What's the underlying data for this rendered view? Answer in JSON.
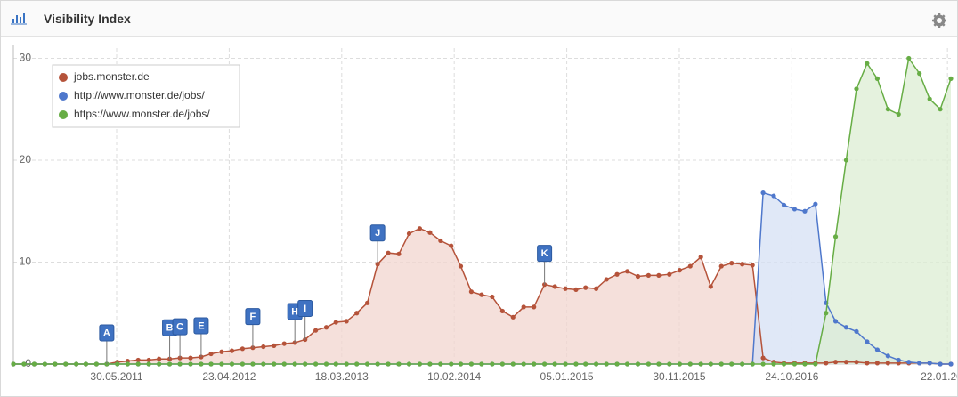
{
  "header": {
    "title": "Visibility Index"
  },
  "chart_data": {
    "type": "line",
    "x": [
      "2010-08",
      "2010-09",
      "2010-10",
      "2010-11",
      "2010-12",
      "2011-01",
      "2011-02",
      "2011-03",
      "2011-04",
      "2011-05",
      "2011-06",
      "2011-07",
      "2011-08",
      "2011-09",
      "2011-10",
      "2011-11",
      "2011-12",
      "2012-01",
      "2012-02",
      "2012-03",
      "2012-04",
      "2012-05",
      "2012-06",
      "2012-07",
      "2012-08",
      "2012-09",
      "2012-10",
      "2012-11",
      "2012-12",
      "2013-01",
      "2013-02",
      "2013-03",
      "2013-04",
      "2013-05",
      "2013-06",
      "2013-07",
      "2013-08",
      "2013-09",
      "2013-10",
      "2013-11",
      "2013-12",
      "2014-01",
      "2014-02",
      "2014-03",
      "2014-04",
      "2014-05",
      "2014-06",
      "2014-07",
      "2014-08",
      "2014-09",
      "2014-10",
      "2014-11",
      "2014-12",
      "2015-01",
      "2015-02",
      "2015-03",
      "2015-04",
      "2015-05",
      "2015-06",
      "2015-07",
      "2015-08",
      "2015-09",
      "2015-10",
      "2015-11",
      "2015-12",
      "2016-01",
      "2016-02",
      "2016-03",
      "2016-04",
      "2016-05",
      "2016-06",
      "2016-07",
      "2016-08",
      "2016-09",
      "2016-10",
      "2016-11",
      "2016-12",
      "2017-01",
      "2017-02",
      "2017-03",
      "2017-04",
      "2017-05",
      "2017-06",
      "2017-07",
      "2017-08",
      "2017-09",
      "2017-10",
      "2017-11",
      "2017-12",
      "2018-01",
      "2018-02"
    ],
    "series": [
      {
        "name": "jobs.monster.de",
        "color": "#b5533a",
        "fill": "#f2d6cf",
        "values": [
          0,
          0,
          0,
          0,
          0,
          0,
          0,
          0,
          0,
          0,
          0.2,
          0.3,
          0.4,
          0.4,
          0.5,
          0.5,
          0.6,
          0.6,
          0.7,
          1.0,
          1.2,
          1.3,
          1.5,
          1.6,
          1.7,
          1.8,
          2.0,
          2.1,
          2.4,
          3.3,
          3.6,
          4.1,
          4.2,
          5.0,
          6.0,
          9.8,
          10.9,
          10.8,
          12.8,
          13.3,
          12.9,
          12.1,
          11.6,
          9.6,
          7.1,
          6.8,
          6.6,
          5.2,
          4.6,
          5.6,
          5.6,
          7.8,
          7.6,
          7.4,
          7.3,
          7.5,
          7.4,
          8.3,
          8.8,
          9.1,
          8.6,
          8.7,
          8.7,
          8.8,
          9.2,
          9.6,
          10.5,
          7.6,
          9.6,
          9.9,
          9.8,
          9.7,
          0.6,
          0.2,
          0.1,
          0.1,
          0.1,
          0.1,
          0.1,
          0.2,
          0.2,
          0.2,
          0.1,
          0.1,
          0.1,
          0.1,
          0.1,
          0.1,
          0.1,
          0,
          0
        ]
      },
      {
        "name": "http://www.monster.de/jobs/",
        "color": "#4f78cc",
        "fill": "#d6e0f4",
        "values": [
          0,
          0,
          0,
          0,
          0,
          0,
          0,
          0,
          0,
          0,
          0,
          0,
          0,
          0,
          0,
          0,
          0,
          0,
          0,
          0,
          0,
          0,
          0,
          0,
          0,
          0,
          0,
          0,
          0,
          0,
          0,
          0,
          0,
          0,
          0,
          0,
          0,
          0,
          0,
          0,
          0,
          0,
          0,
          0,
          0,
          0,
          0,
          0,
          0,
          0,
          0,
          0,
          0,
          0,
          0,
          0,
          0,
          0,
          0,
          0,
          0,
          0,
          0,
          0,
          0,
          0,
          0,
          0,
          0,
          0,
          0,
          0,
          16.8,
          16.5,
          15.6,
          15.2,
          15.0,
          15.7,
          6,
          4.2,
          3.6,
          3.2,
          2.2,
          1.4,
          0.8,
          0.4,
          0.2,
          0.1,
          0.1,
          0,
          0
        ]
      },
      {
        "name": "https://www.monster.de/jobs/",
        "color": "#67ad45",
        "fill": "#dcedd3",
        "values": [
          0,
          0,
          0,
          0,
          0,
          0,
          0,
          0,
          0,
          0,
          0,
          0,
          0,
          0,
          0,
          0,
          0,
          0,
          0,
          0,
          0,
          0,
          0,
          0,
          0,
          0,
          0,
          0,
          0,
          0,
          0,
          0,
          0,
          0,
          0,
          0,
          0,
          0,
          0,
          0,
          0,
          0,
          0,
          0,
          0,
          0,
          0,
          0,
          0,
          0,
          0,
          0,
          0,
          0,
          0,
          0,
          0,
          0,
          0,
          0,
          0,
          0,
          0,
          0,
          0,
          0,
          0,
          0,
          0,
          0,
          0,
          0,
          0,
          0,
          0,
          0,
          0,
          0,
          5,
          12.5,
          20,
          27,
          29.5,
          28,
          25,
          24.5,
          30,
          28.5,
          26,
          25,
          28
        ]
      }
    ],
    "xlim": [
      "2010-08",
      "2018-02"
    ],
    "xticks": [
      {
        "value": "2011-05-30",
        "label": "30.05.2011"
      },
      {
        "value": "2012-04-23",
        "label": "23.04.2012"
      },
      {
        "value": "2013-03-18",
        "label": "18.03.2013"
      },
      {
        "value": "2014-02-10",
        "label": "10.02.2014"
      },
      {
        "value": "2015-01-05",
        "label": "05.01.2015"
      },
      {
        "value": "2015-11-30",
        "label": "30.11.2015"
      },
      {
        "value": "2016-10-24",
        "label": "24.10.2016"
      },
      {
        "value": "2018-01-22",
        "label": "22.01.2018"
      }
    ],
    "ylim": [
      0,
      31
    ],
    "yticks": [
      0,
      10,
      20,
      30
    ],
    "grid": true,
    "legend": "top-left",
    "annotations": [
      {
        "label": "A",
        "x": "2011-05"
      },
      {
        "label": "B",
        "x": "2011-11"
      },
      {
        "label": "C",
        "x": "2011-12"
      },
      {
        "label": "E",
        "x": "2012-02"
      },
      {
        "label": "F",
        "x": "2012-07"
      },
      {
        "label": "H",
        "x": "2012-11"
      },
      {
        "label": "I",
        "x": "2012-12"
      },
      {
        "label": "J",
        "x": "2013-07"
      },
      {
        "label": "K",
        "x": "2014-11"
      }
    ]
  }
}
